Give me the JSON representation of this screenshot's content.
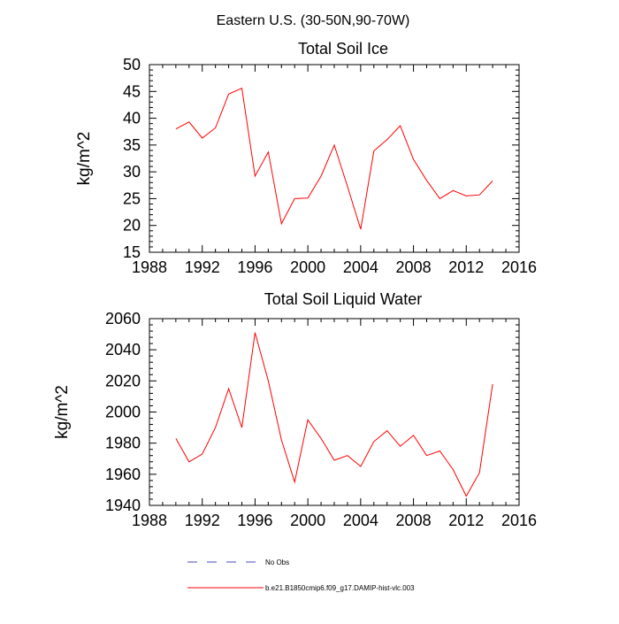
{
  "figure": {
    "suptitle": "Eastern U.S. (30-50N,90-70W)",
    "legend": [
      {
        "label": "No Obs",
        "color": "#4a4ab8",
        "style": "dashed"
      },
      {
        "label": "b.e21.B1850cmip6.f09_g17.DAMIP-hist-vlc.003",
        "color": "#ff0000",
        "style": "solid"
      }
    ]
  },
  "chart_data": [
    {
      "type": "line",
      "title": "Total Soil Ice",
      "xlabel": "",
      "ylabel": "kg/m^2",
      "xlim": [
        1988,
        2016
      ],
      "ylim": [
        15,
        50
      ],
      "xticks": [
        1988,
        1992,
        1996,
        2000,
        2004,
        2008,
        2012,
        2016
      ],
      "yticks": [
        15,
        20,
        25,
        30,
        35,
        40,
        45,
        50
      ],
      "series": [
        {
          "name": "b.e21.B1850cmip6.f09_g17.DAMIP-hist-vlc.003",
          "color": "#ff0000",
          "x": [
            1990,
            1991,
            1992,
            1993,
            1994,
            1995,
            1996,
            1997,
            1998,
            1999,
            2000,
            2001,
            2002,
            2003,
            2004,
            2005,
            2006,
            2007,
            2008,
            2009,
            2010,
            2011,
            2012,
            2013,
            2014
          ],
          "values": [
            38.0,
            39.3,
            36.3,
            38.2,
            44.5,
            45.6,
            29.2,
            33.7,
            20.3,
            25.0,
            25.1,
            29.2,
            35.0,
            27.3,
            19.3,
            33.9,
            36.0,
            38.6,
            32.3,
            28.4,
            25.0,
            26.5,
            25.5,
            25.7,
            28.3
          ]
        }
      ]
    },
    {
      "type": "line",
      "title": "Total Soil Liquid Water",
      "xlabel": "",
      "ylabel": "kg/m^2",
      "xlim": [
        1988,
        2016
      ],
      "ylim": [
        1940,
        2060
      ],
      "xticks": [
        1988,
        1992,
        1996,
        2000,
        2004,
        2008,
        2012,
        2016
      ],
      "yticks": [
        1940,
        1960,
        1980,
        2000,
        2020,
        2040,
        2060
      ],
      "series": [
        {
          "name": "b.e21.B1850cmip6.f09_g17.DAMIP-hist-vlc.003",
          "color": "#ff0000",
          "x": [
            1990,
            1991,
            1992,
            1993,
            1994,
            1995,
            1996,
            1997,
            1998,
            1999,
            2000,
            2001,
            2002,
            2003,
            2004,
            2005,
            2006,
            2007,
            2008,
            2009,
            2010,
            2011,
            2012,
            2013,
            2014
          ],
          "values": [
            1983,
            1968,
            1973,
            1990,
            2015,
            1990,
            2051,
            2020,
            1982,
            1955,
            1995,
            1983,
            1969,
            1972,
            1965,
            1981,
            1988,
            1978,
            1985,
            1972,
            1975,
            1963,
            1946,
            1961,
            2018
          ]
        }
      ]
    }
  ]
}
